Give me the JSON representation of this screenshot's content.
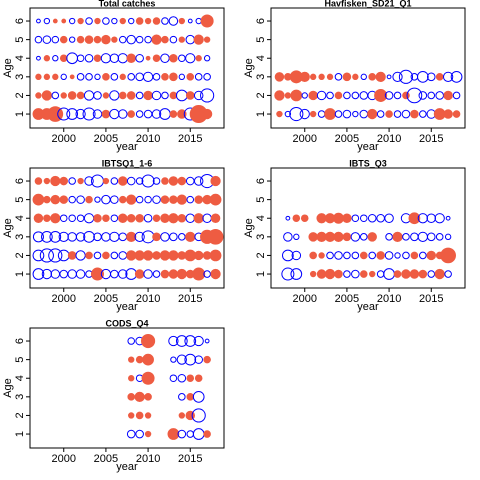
{
  "chart_data": [
    {
      "type": "bubble",
      "title": "Total catches",
      "xlabel": "year",
      "ylabel": "Age",
      "years": [
        1997,
        1998,
        1999,
        2000,
        2001,
        2002,
        2003,
        2004,
        2005,
        2006,
        2007,
        2008,
        2009,
        2010,
        2011,
        2012,
        2013,
        2014,
        2015,
        2016,
        2017
      ],
      "ages": [
        1,
        2,
        3,
        4,
        5,
        6
      ],
      "residuals": [
        [
          0.8,
          0.8,
          1.5,
          -1,
          -0.8,
          -0.6,
          -1,
          -0.5,
          0.4,
          -0.6,
          -0.5,
          0.3,
          -0.3,
          -0.4,
          -0.5,
          -0.8,
          0.3,
          0.5,
          -1,
          2,
          0.6
        ],
        [
          0.2,
          0.6,
          -0.3,
          0.2,
          0.4,
          0.3,
          -0.6,
          -0.4,
          0.2,
          -0.6,
          0.3,
          0.4,
          -0.3,
          0.5,
          -0.5,
          -0.3,
          0.3,
          -0.8,
          0.4,
          -0.5,
          -1.2
        ],
        [
          0.2,
          0.2,
          0.2,
          -0.2,
          0.1,
          -0.3,
          -0.3,
          -0.2,
          0.3,
          -0.3,
          0.2,
          -0.3,
          -0.4,
          -0.6,
          -0.3,
          0.3,
          0.4,
          -0.2,
          0.3,
          -0.3,
          -0.3
        ],
        [
          -0.1,
          0.2,
          -0.2,
          0.3,
          -0.8,
          -0.3,
          -0.4,
          0.3,
          -0.6,
          -0.5,
          -0.6,
          0.5,
          -0.4,
          0.1,
          0.3,
          -0.5,
          0.4,
          -0.3,
          -0.6,
          0.2,
          -0.2
        ],
        [
          -0.3,
          -0.4,
          -0.3,
          0.3,
          -0.2,
          0.3,
          0.4,
          0.3,
          0.5,
          0.2,
          -0.3,
          -0.5,
          -0.3,
          -0.3,
          0.6,
          0.3,
          -0.3,
          0.2,
          -0.5,
          0.6,
          0.2
        ],
        [
          -0.1,
          -0.2,
          0.1,
          0.1,
          -0.2,
          0.2,
          -0.3,
          0.2,
          -0.3,
          -0.2,
          0.2,
          -0.2,
          0.3,
          0.2,
          0.3,
          -0.3,
          -0.5,
          0.2,
          -0.1,
          -0.2,
          1
        ]
      ],
      "xlim": [
        1996,
        2019
      ],
      "xticks": [
        2000,
        2005,
        2010,
        2015
      ],
      "ylim": [
        0.25,
        6.7
      ],
      "yticks": [
        1,
        2,
        3,
        4,
        5,
        6
      ],
      "positive_color": "#ee5c42",
      "negative_color": "#0000ff"
    },
    {
      "type": "bubble",
      "title": "Havfisken_SD21_Q1",
      "xlabel": "year",
      "ylabel": "Age",
      "years": [
        1997,
        1998,
        1999,
        2000,
        2001,
        2002,
        2003,
        2004,
        2005,
        2006,
        2007,
        2008,
        2009,
        2010,
        2011,
        2012,
        2013,
        2014,
        2015,
        2016,
        2017,
        2018
      ],
      "ages": [
        1,
        2,
        3
      ],
      "residuals": [
        [
          0.2,
          -0.2,
          -1.2,
          -0.6,
          0.2,
          -0.3,
          0.8,
          -0.3,
          -0.4,
          -0.2,
          -0.4,
          0.6,
          -0.3,
          0.3,
          -0.3,
          -0.4,
          0.4,
          -0.3,
          -0.5,
          0.8,
          0.5,
          0.3
        ],
        [
          0.6,
          0.2,
          0.8,
          -0.2,
          0.5,
          -0.5,
          -0.3,
          0.3,
          -0.3,
          -0.3,
          -0.4,
          -0.5,
          1,
          -0.4,
          -0.3,
          0.3,
          -1.5,
          -0.4,
          -0.3,
          -0.4,
          0.5,
          -0.3
        ],
        [
          0.5,
          0.3,
          1,
          0.6,
          0.2,
          0.2,
          0.2,
          -0.3,
          0.4,
          0.2,
          -0.2,
          0.3,
          0.6,
          -0.1,
          -0.6,
          -1.2,
          -0.3,
          -0.8,
          -0.4,
          0.3,
          -0.6,
          -0.8
        ]
      ],
      "xlim": [
        1996,
        2019
      ],
      "xticks": [
        2000,
        2005,
        2010,
        2015
      ],
      "ylim": [
        0.25,
        6.7
      ],
      "yticks": [
        1,
        2,
        3,
        4,
        5,
        6
      ],
      "positive_color": "#ee5c42",
      "negative_color": "#0000ff"
    },
    {
      "type": "bubble",
      "title": "IBTSQ1_1-6",
      "xlabel": "year",
      "ylabel": "Age",
      "years": [
        1997,
        1998,
        1999,
        2000,
        2001,
        2002,
        2003,
        2004,
        2005,
        2006,
        2007,
        2008,
        2009,
        2010,
        2011,
        2012,
        2013,
        2014,
        2015,
        2016,
        2017,
        2018
      ],
      "ages": [
        1,
        2,
        3,
        4,
        5,
        6
      ],
      "residuals": [
        [
          -0.8,
          -0.6,
          -0.5,
          -0.4,
          -0.5,
          -0.5,
          -0.3,
          1,
          -0.6,
          -0.4,
          -0.5,
          -0.8,
          0.5,
          -0.5,
          -0.3,
          0.4,
          0.5,
          0.6,
          0.4,
          1,
          -0.3,
          0.6
        ],
        [
          -0.8,
          -1.2,
          -1.2,
          -0.8,
          0.4,
          -0.6,
          0.3,
          -0.3,
          0.3,
          -0.3,
          -0.4,
          0.6,
          0.6,
          0.6,
          0.4,
          0.6,
          0.6,
          0.4,
          0.8,
          0.5,
          0.4,
          0.8
        ],
        [
          -0.7,
          -0.8,
          -0.8,
          -0.6,
          -0.5,
          -0.5,
          -0.8,
          -0.4,
          -0.5,
          -0.6,
          -0.4,
          0.6,
          -0.6,
          -1,
          0.4,
          -0.5,
          -0.4,
          -0.3,
          0.6,
          -0.4,
          1.2,
          1.5
        ],
        [
          0.5,
          0.3,
          0.6,
          -0.3,
          -0.3,
          -0.3,
          -0.6,
          0.4,
          0.3,
          -0.3,
          0.5,
          0.4,
          0.4,
          -0.4,
          0.3,
          0.5,
          0.6,
          0.4,
          -0.5,
          0.6,
          -0.5,
          0.5
        ],
        [
          0.8,
          0.3,
          0.5,
          0.4,
          -0.3,
          -0.4,
          0.3,
          -0.2,
          -0.5,
          -0.4,
          0.3,
          0.6,
          -0.3,
          -0.3,
          -0.4,
          0.4,
          0.4,
          0.6,
          -0.3,
          0.4,
          0.5,
          0.8
        ],
        [
          0.3,
          0.2,
          0.6,
          0.4,
          -0.3,
          0.2,
          -0.5,
          -1,
          0.2,
          -0.3,
          0.5,
          -0.4,
          -0.3,
          -1,
          -0.3,
          0.3,
          0.5,
          0.4,
          -0.4,
          -0.5,
          -1.2,
          0.6
        ]
      ],
      "xlim": [
        1996,
        2019
      ],
      "xticks": [
        2000,
        2005,
        2010,
        2015
      ],
      "ylim": [
        0.25,
        6.7
      ],
      "yticks": [
        1,
        2,
        3,
        4,
        5,
        6
      ],
      "positive_color": "#ee5c42",
      "negative_color": "#0000ff"
    },
    {
      "type": "bubble",
      "title": "IBTS_Q3",
      "xlabel": "year",
      "ylabel": "Age",
      "years": [
        1998,
        1999,
        2000,
        2001,
        2002,
        2003,
        2004,
        2005,
        2006,
        2007,
        2008,
        2009,
        2010,
        2011,
        2012,
        2013,
        2014,
        2015,
        2016,
        2017
      ],
      "ages": [
        1,
        2,
        3,
        4
      ],
      "residuals": [
        [
          -1,
          -0.8,
          null,
          0.2,
          0.5,
          0.6,
          0.4,
          -0.3,
          -0.4,
          0.3,
          0.2,
          -0.3,
          -0.8,
          0.3,
          0.5,
          0.5,
          0.4,
          -0.3,
          0.6,
          -0.3
        ],
        [
          -0.8,
          -0.5,
          null,
          0.3,
          0.2,
          -0.3,
          -0.4,
          -0.3,
          -0.3,
          0.3,
          -0.3,
          0.4,
          -0.4,
          -0.2,
          -0.3,
          0.3,
          -0.3,
          0.5,
          0.3,
          1.5
        ],
        [
          -0.5,
          -0.2,
          null,
          0.5,
          0.6,
          0.6,
          0.6,
          0.4,
          -0.5,
          -0.3,
          0.5,
          null,
          -0.3,
          0.6,
          -0.3,
          -0.4,
          -0.6,
          -0.4,
          -0.3,
          -0.2
        ],
        [
          -0.1,
          0.3,
          0.3,
          null,
          0.6,
          0.6,
          0.7,
          0.5,
          -0.3,
          -0.3,
          -0.4,
          -0.4,
          -0.5,
          null,
          -0.6,
          0.8,
          -0.6,
          -0.5,
          -0.6,
          -0.1
        ]
      ],
      "xlim": [
        1996,
        2019
      ],
      "xticks": [
        2000,
        2005,
        2010,
        2015
      ],
      "ylim": [
        0.25,
        6.7
      ],
      "yticks": [
        1,
        2,
        3,
        4,
        5,
        6
      ],
      "positive_color": "#ee5c42",
      "negative_color": "#0000ff"
    },
    {
      "type": "bubble",
      "title": "CODS_Q4",
      "xlabel": "year",
      "ylabel": "Age",
      "years": [
        2008,
        2009,
        2010,
        2011,
        2012,
        2013,
        2014,
        2015,
        2016,
        2017
      ],
      "ages": [
        1,
        2,
        3,
        4,
        5,
        6
      ],
      "residuals": [
        [
          -0.4,
          -0.4,
          0.2,
          null,
          null,
          0.8,
          -0.4,
          -0.3,
          -0.8,
          0.3
        ],
        [
          0.2,
          0.3,
          0.2,
          null,
          null,
          null,
          0.2,
          0.5,
          -1.2,
          null
        ],
        [
          0.3,
          0.6,
          0.3,
          null,
          null,
          null,
          -0.3,
          0.3,
          -0.8,
          null
        ],
        [
          0.2,
          -0.3,
          1,
          null,
          null,
          -0.3,
          -0.4,
          0.3,
          0.3,
          null
        ],
        [
          0.2,
          0.3,
          0.8,
          null,
          null,
          -0.2,
          -0.6,
          -0.8,
          -0.4,
          0.3
        ],
        [
          -0.3,
          -0.4,
          1.2,
          null,
          null,
          -0.6,
          -0.8,
          -0.8,
          -0.6,
          -0.1
        ]
      ],
      "xlim": [
        1996,
        2019
      ],
      "xticks": [
        2000,
        2005,
        2010,
        2015
      ],
      "ylim": [
        0.25,
        6.7
      ],
      "yticks": [
        1,
        2,
        3,
        4,
        5,
        6
      ],
      "positive_color": "#ee5c42",
      "negative_color": "#0000ff"
    }
  ]
}
